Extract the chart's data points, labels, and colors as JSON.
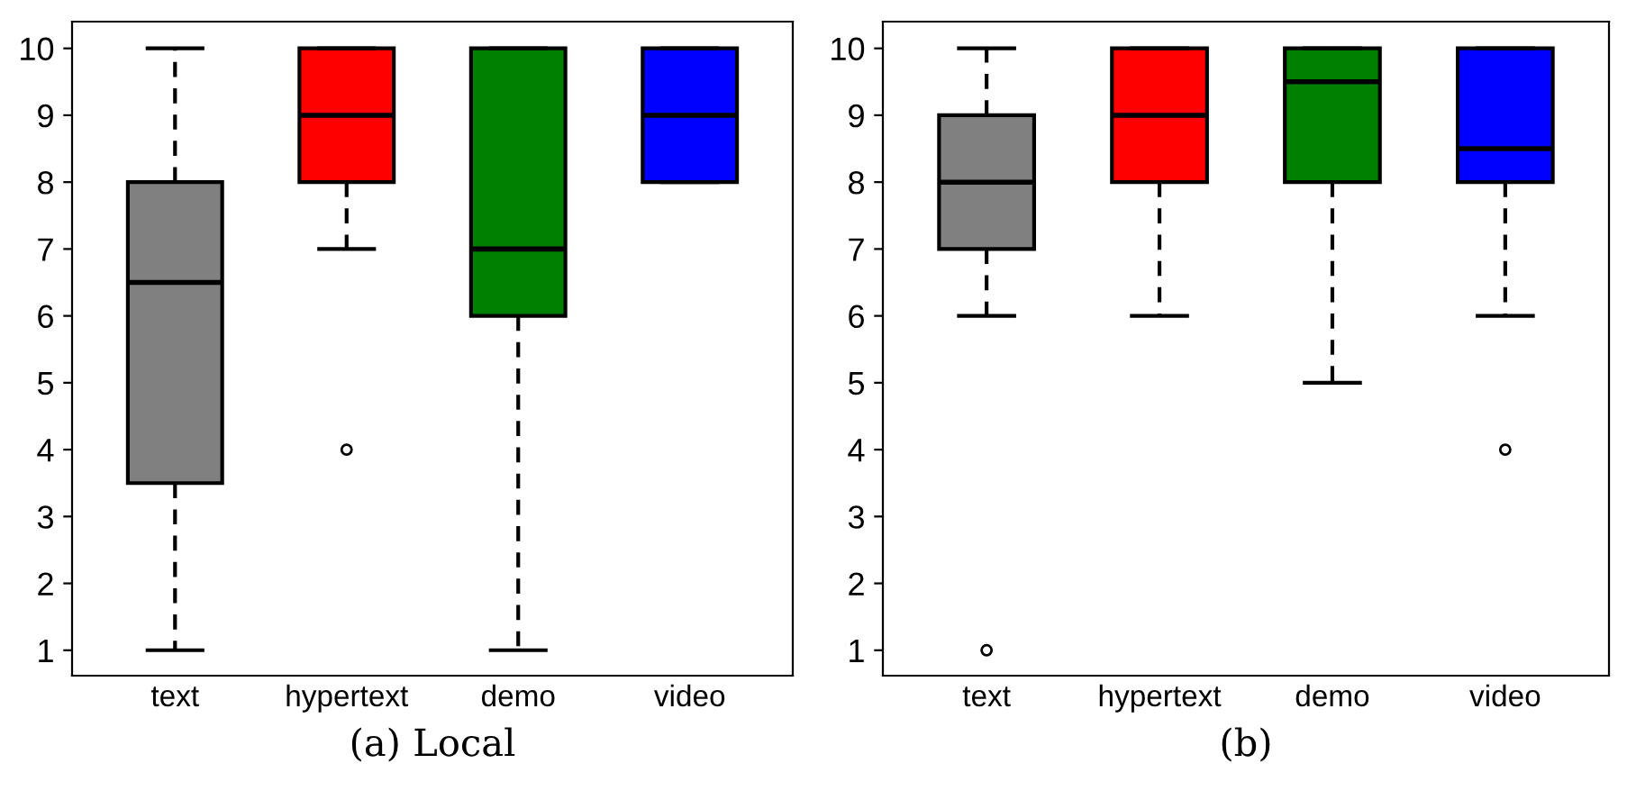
{
  "chart_data": [
    {
      "type": "box",
      "xlabel": "(a) Local",
      "categories": [
        "text",
        "hypertext",
        "demo",
        "video"
      ],
      "colors": [
        "#808080",
        "#ff0000",
        "#008000",
        "#0000ff"
      ],
      "ylim": [
        0.62,
        10.4
      ],
      "yticks": [
        1,
        2,
        3,
        4,
        5,
        6,
        7,
        8,
        9,
        10
      ],
      "grid": false,
      "boxes": [
        {
          "low": 1,
          "q1": 3.5,
          "median": 6.5,
          "q3": 8,
          "high": 10
        },
        {
          "low": 7,
          "q1": 8,
          "median": 9,
          "q3": 10,
          "high": 10,
          "outliers": [
            4
          ]
        },
        {
          "low": 1,
          "q1": 6,
          "median": 7,
          "q3": 10,
          "high": 10
        },
        {
          "low": 8,
          "q1": 8,
          "median": 9,
          "q3": 10,
          "high": 10
        }
      ]
    },
    {
      "type": "box",
      "xlabel": "(b)",
      "categories": [
        "text",
        "hypertext",
        "demo",
        "video"
      ],
      "colors": [
        "#808080",
        "#ff0000",
        "#008000",
        "#0000ff"
      ],
      "ylim": [
        0.62,
        10.4
      ],
      "yticks": [
        1,
        2,
        3,
        4,
        5,
        6,
        7,
        8,
        9,
        10
      ],
      "grid": false,
      "boxes": [
        {
          "low": 6,
          "q1": 7,
          "median": 8,
          "q3": 9,
          "high": 10,
          "outliers": [
            1
          ]
        },
        {
          "low": 6,
          "q1": 8,
          "median": 9,
          "q3": 10,
          "high": 10
        },
        {
          "low": 5,
          "q1": 8,
          "median": 9.5,
          "q3": 10,
          "high": 10
        },
        {
          "low": 6,
          "q1": 8,
          "median": 8.5,
          "q3": 10,
          "high": 10,
          "outliers": [
            4
          ]
        }
      ]
    }
  ]
}
